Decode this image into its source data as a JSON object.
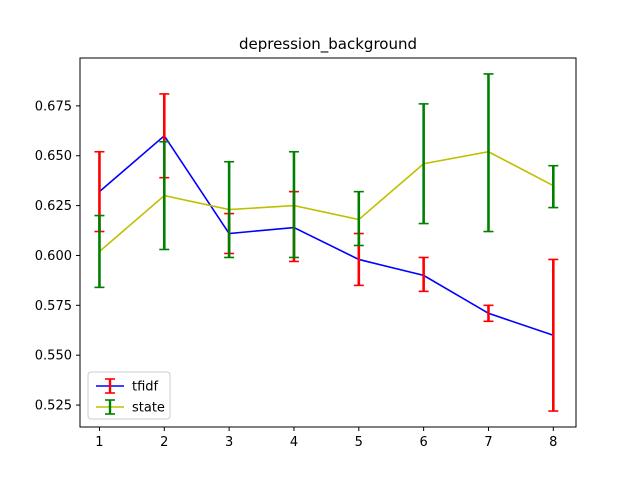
{
  "chart_data": {
    "type": "line",
    "title": "depression_background",
    "xlabel": "",
    "ylabel": "",
    "x": [
      1,
      2,
      3,
      4,
      5,
      6,
      7,
      8
    ],
    "xlim": [
      0.7,
      8.35
    ],
    "ylim": [
      0.514,
      0.699
    ],
    "x_ticks": [
      1,
      2,
      3,
      4,
      5,
      6,
      7,
      8
    ],
    "y_ticks": [
      0.525,
      0.55,
      0.575,
      0.6,
      0.625,
      0.65,
      0.675
    ],
    "y_tick_labels": [
      "0.525",
      "0.550",
      "0.575",
      "0.600",
      "0.625",
      "0.650",
      "0.675"
    ],
    "grid": false,
    "legend_position": "lower-left",
    "series": [
      {
        "name": "tfidf",
        "line_color": "#0000ff",
        "error_color": "#ff0000",
        "values": [
          0.632,
          0.66,
          0.611,
          0.614,
          0.598,
          0.59,
          0.571,
          0.56
        ],
        "error_low": [
          0.612,
          0.639,
          0.601,
          0.597,
          0.585,
          0.582,
          0.567,
          0.522
        ],
        "error_high": [
          0.652,
          0.681,
          0.621,
          0.632,
          0.611,
          0.599,
          0.575,
          0.598
        ]
      },
      {
        "name": "state",
        "line_color": "#bfbf00",
        "error_color": "#008000",
        "values": [
          0.602,
          0.63,
          0.623,
          0.625,
          0.618,
          0.646,
          0.652,
          0.635
        ],
        "error_low": [
          0.584,
          0.603,
          0.599,
          0.599,
          0.605,
          0.616,
          0.612,
          0.624
        ],
        "error_high": [
          0.62,
          0.657,
          0.647,
          0.652,
          0.632,
          0.676,
          0.691,
          0.645
        ]
      }
    ]
  }
}
